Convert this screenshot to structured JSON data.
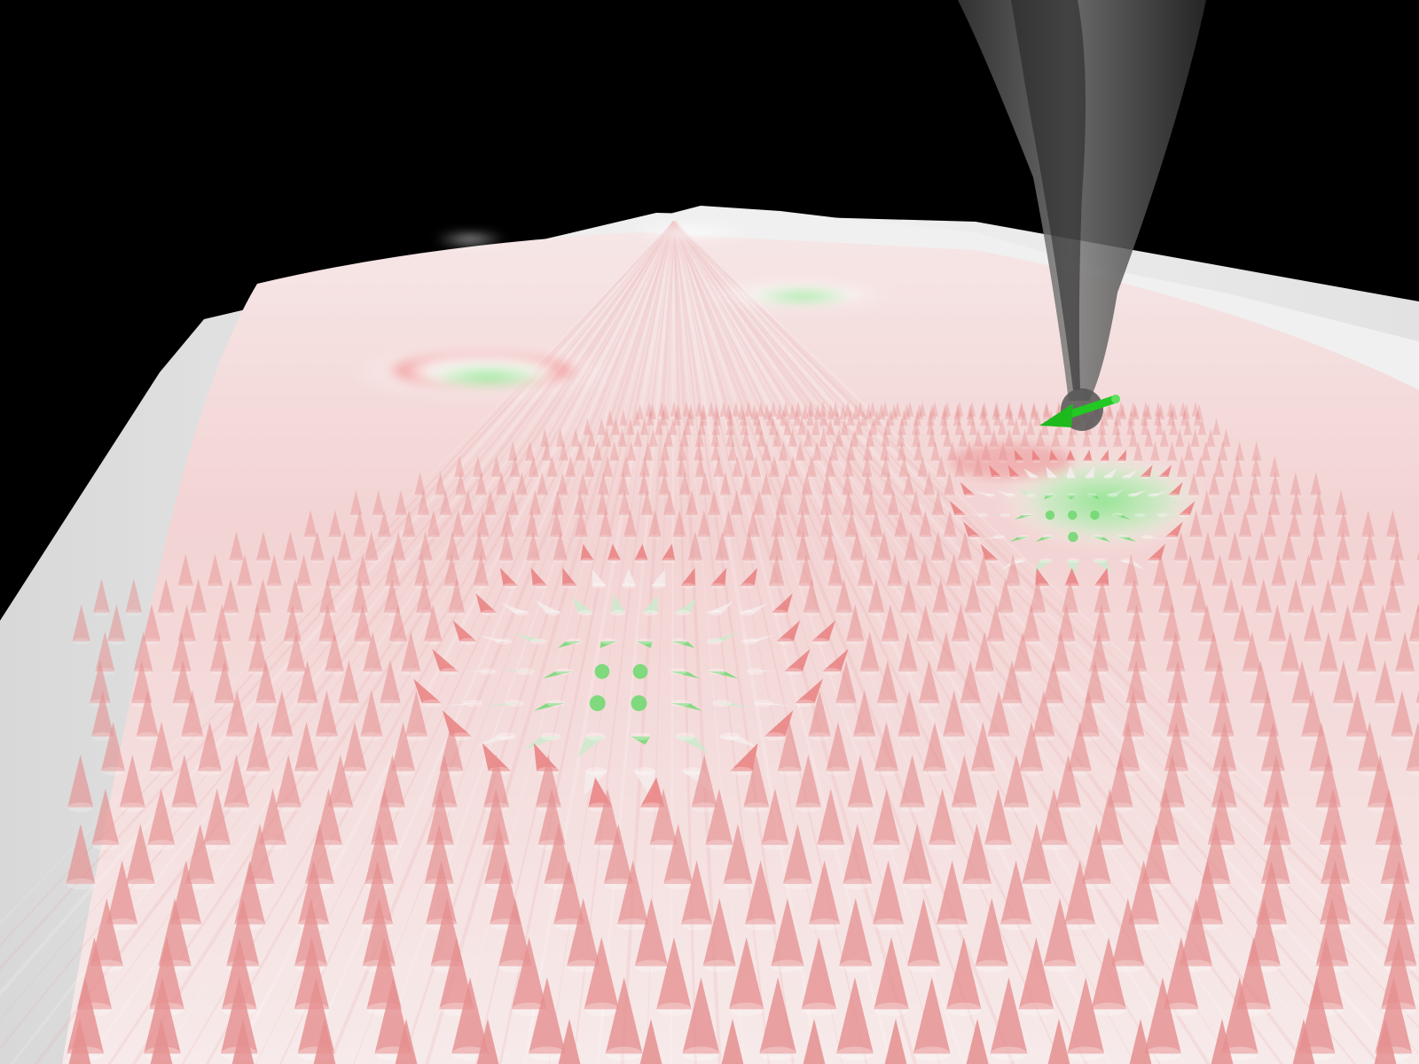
{
  "scene": {
    "background_color": "#000000",
    "surface_colors": {
      "film_edge": "#e8e8e8",
      "film_top": "#f2d6d6",
      "film_tint": "#e9a3a3",
      "lattice_highlight": "#f3eefb"
    },
    "arrow_colors": {
      "up": "#e58f8f",
      "down": "#72d872",
      "in_plane": "#f4ecec"
    },
    "probe": {
      "tip_color": "#5a5a5a",
      "moment_color": "#22c922"
    },
    "skyrmion_count": 5
  }
}
